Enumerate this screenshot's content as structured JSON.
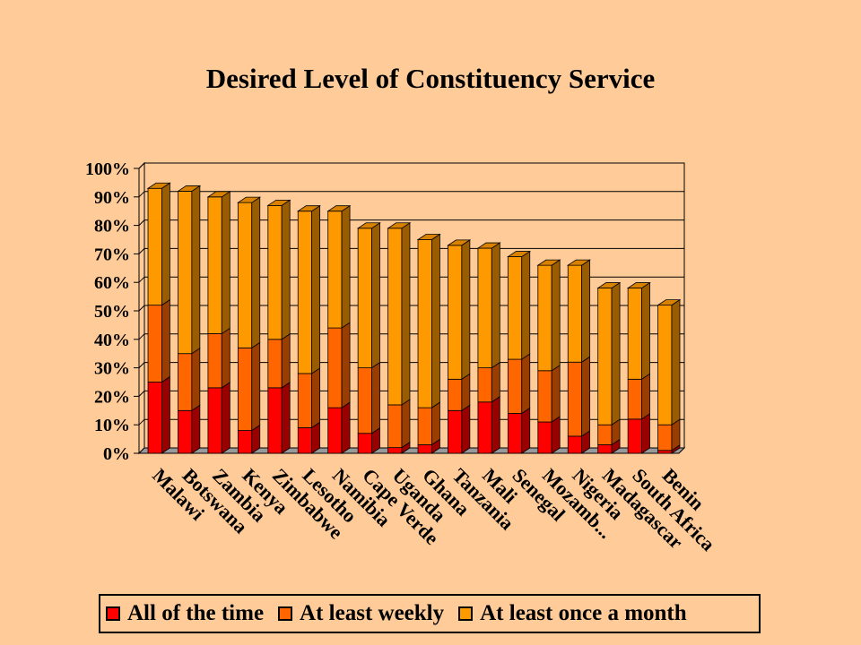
{
  "chart_data": {
    "type": "bar",
    "stacked": true,
    "three_d": true,
    "title": "Desired Level of Constituency Service",
    "xlabel": "",
    "ylabel": "",
    "ylim": [
      0,
      100
    ],
    "yticks": [
      "0%",
      "10%",
      "20%",
      "30%",
      "40%",
      "50%",
      "60%",
      "70%",
      "80%",
      "90%",
      "100%"
    ],
    "grid": true,
    "legend_position": "bottom",
    "categories": [
      "Malawi",
      "Botswana",
      "Zambia",
      "Kenya",
      "Zimbabwe",
      "Lesotho",
      "Namibia",
      "Cape Verde",
      "Uganda",
      "Ghana",
      "Tanzania",
      "Mali",
      "Senegal",
      "Mozamb...",
      "Nigeria",
      "Madagascar",
      "South Africa",
      "Benin"
    ],
    "series": [
      {
        "name": "All of the time",
        "color": "#FF0000",
        "values": [
          25,
          15,
          23,
          8,
          23,
          9,
          16,
          7,
          2,
          3,
          15,
          18,
          14,
          11,
          6,
          3,
          12,
          1
        ]
      },
      {
        "name": "At least weekly",
        "color": "#FF6600",
        "values": [
          27,
          20,
          19,
          29,
          17,
          19,
          28,
          23,
          15,
          13,
          11,
          12,
          19,
          18,
          26,
          7,
          14,
          9
        ]
      },
      {
        "name": "At least once a month",
        "color": "#FF9900",
        "values": [
          41,
          57,
          48,
          51,
          47,
          57,
          41,
          49,
          62,
          59,
          47,
          42,
          36,
          37,
          34,
          48,
          32,
          42
        ]
      }
    ]
  }
}
